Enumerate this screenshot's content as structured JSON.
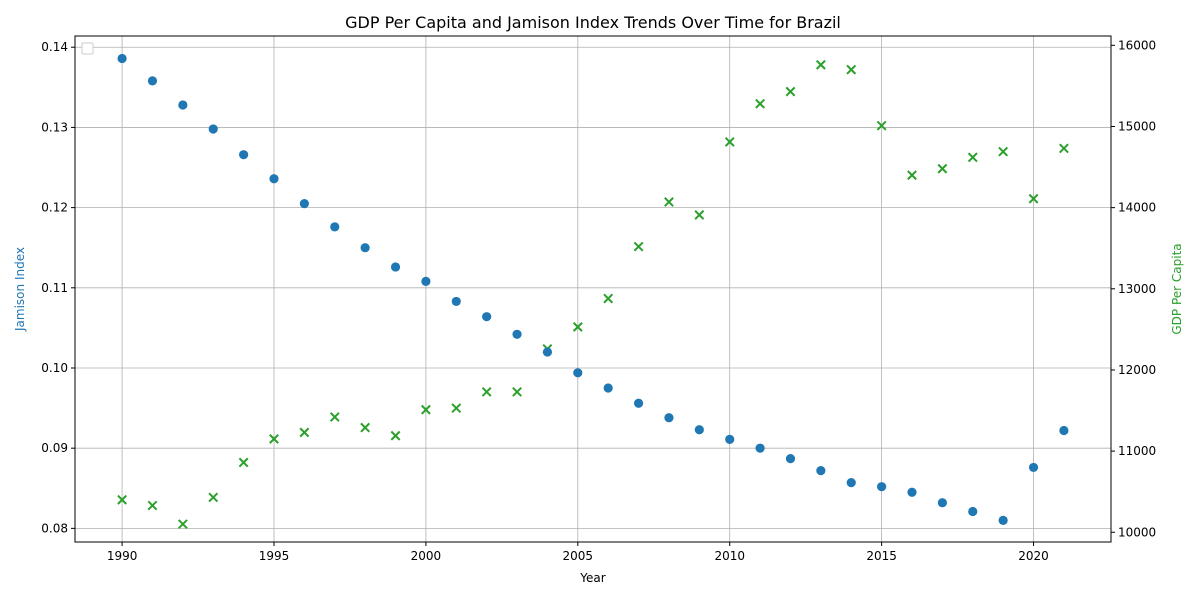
{
  "chart_data": {
    "type": "scatter",
    "title": "GDP Per Capita and Jamison Index Trends Over Time for Brazil",
    "xlabel": "Year",
    "ylabel_left": "Jamison Index",
    "ylabel_right": "GDP Per Capita",
    "xlim": [
      1988.45,
      2022.55
    ],
    "ylim_left": [
      0.0783,
      0.1414
    ],
    "ylim_right": [
      9880,
      16115
    ],
    "xticks": [
      1990,
      1995,
      2000,
      2005,
      2010,
      2015,
      2020
    ],
    "yticks_left": [
      0.08,
      0.09,
      0.1,
      0.11,
      0.12,
      0.13,
      0.14
    ],
    "yticks_left_labels": [
      "0.08",
      "0.09",
      "0.10",
      "0.11",
      "0.12",
      "0.13",
      "0.14"
    ],
    "yticks_right": [
      10000,
      11000,
      12000,
      13000,
      14000,
      15000,
      16000
    ],
    "grid": true,
    "legend": "top-left (empty)",
    "x": [
      1990,
      1991,
      1992,
      1993,
      1994,
      1995,
      1996,
      1997,
      1998,
      1999,
      2000,
      2001,
      2002,
      2003,
      2004,
      2005,
      2006,
      2007,
      2008,
      2009,
      2010,
      2011,
      2012,
      2013,
      2014,
      2015,
      2016,
      2017,
      2018,
      2019,
      2020,
      2021
    ],
    "series": [
      {
        "name": "",
        "axis": "left",
        "marker": "circle",
        "color": "#1f77b4",
        "values": [
          0.1386,
          0.1358,
          0.1328,
          0.1298,
          0.1266,
          0.1236,
          0.1205,
          0.1176,
          0.115,
          0.1126,
          0.1108,
          0.1083,
          0.1064,
          0.1042,
          0.102,
          0.0994,
          0.0975,
          0.0956,
          0.0938,
          0.0923,
          0.0911,
          0.09,
          0.0887,
          0.0872,
          0.0857,
          0.0852,
          0.0845,
          0.0832,
          0.0821,
          0.081,
          0.0876,
          0.0922
        ]
      },
      {
        "name": "",
        "axis": "right",
        "marker": "x",
        "color": "#2ca02c",
        "values": [
          10400,
          10330,
          10100,
          10430,
          10860,
          11150,
          11230,
          11420,
          11290,
          11190,
          11510,
          11530,
          11730,
          11730,
          12260,
          12530,
          12880,
          13520,
          14070,
          13910,
          14810,
          15280,
          15430,
          15760,
          15700,
          15010,
          14400,
          14480,
          14620,
          14690,
          14110,
          14730
        ]
      }
    ]
  }
}
